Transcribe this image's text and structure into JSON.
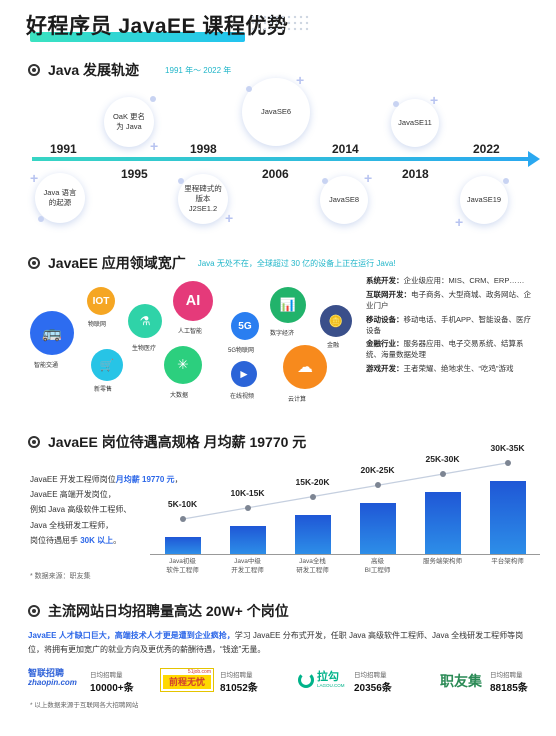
{
  "page": {
    "title": "好程序员 JavaEE 课程优势"
  },
  "history": {
    "heading": "Java 发展轨迹",
    "subheading": "1991 年～ 2022 年",
    "years": [
      "1991",
      "1995",
      "1998",
      "2006",
      "2014",
      "2018",
      "2022"
    ],
    "milestones": [
      {
        "text": "Java 语言的起源"
      },
      {
        "text": "OaK 更名为 Java"
      },
      {
        "text": "里程碑式的版本 J2SE1.2"
      },
      {
        "text": "JavaSE6"
      },
      {
        "text": "JavaSE8"
      },
      {
        "text": "JavaSE11"
      },
      {
        "text": "JavaSE19"
      }
    ]
  },
  "apps": {
    "heading": "JavaEE 应用领域宽广",
    "subheading": "Java 无处不在，全球超过 30 亿的设备上正在运行 Java!",
    "icons": [
      {
        "label": "智能交通",
        "glyph": "🚌",
        "color": "#2d6cf0"
      },
      {
        "label": "物联网",
        "glyph": "IOT",
        "color": "#f5a623"
      },
      {
        "label": "新零售",
        "glyph": "🛒",
        "color": "#27c4e6"
      },
      {
        "label": "生物医疗",
        "glyph": "⚗",
        "color": "#2fd3a8"
      },
      {
        "label": "人工智能",
        "glyph": "AI",
        "color": "#e53a7a"
      },
      {
        "label": "大数据",
        "glyph": "✳",
        "color": "#2ccf7e"
      },
      {
        "label": "5G物联网",
        "glyph": "5G",
        "color": "#2a7ef0"
      },
      {
        "label": "在线视频",
        "glyph": "▶",
        "color": "#2b64d8"
      },
      {
        "label": "数字经济",
        "glyph": "📊",
        "color": "#21b36b"
      },
      {
        "label": "云计算",
        "glyph": "☁",
        "color": "#f78a1d"
      },
      {
        "label": "金融",
        "glyph": "🪙",
        "color": "#3a4f8a"
      }
    ],
    "fields": [
      {
        "name": "系统开发：",
        "desc": "企业级应用：MIS、CRM、ERP……"
      },
      {
        "name": "互联网开发：",
        "desc": "电子商务、大型商城、政务网站、企业门户"
      },
      {
        "name": "移动设备：",
        "desc": "移动电话、手机APP、智能设备、医疗设备"
      },
      {
        "name": "金融行业：",
        "desc": "服务器应用、电子交易系统、结算系统、海量数据处理"
      },
      {
        "name": "游戏开发：",
        "desc": "王者荣耀、绝地求生、“吃鸡”游戏"
      }
    ]
  },
  "salary": {
    "heading": "JavaEE 岗位待遇高规格 月均薪 19770 元",
    "lines": [
      {
        "pre": "JavaEE 开发工程师岗位",
        "hl": "月均薪 19770 元",
        "post": "，"
      },
      {
        "pre": "JavaEE 高端开发岗位，",
        "hl": "",
        "post": ""
      },
      {
        "pre": "例如 Java 高级软件工程师、",
        "hl": "",
        "post": ""
      },
      {
        "pre": "Java 全栈研发工程师，",
        "hl": "",
        "post": ""
      },
      {
        "pre": "岗位待遇屈手 ",
        "hl": "30K 以上",
        "post": "。"
      }
    ],
    "note": "* 数据来源：职友集"
  },
  "chart_data": {
    "type": "bar",
    "categories": [
      "Java初级软件工程师",
      "Java中级开发工程师",
      "Java全栈研发工程师",
      "高级BI工程师",
      "服务端架构师",
      "平台架构师"
    ],
    "category_lines": [
      [
        "Java初级",
        "软件工程师"
      ],
      [
        "Java中级",
        "开发工程师"
      ],
      [
        "Java全栈",
        "研发工程师"
      ],
      [
        "高级",
        "BI工程师"
      ],
      [
        "服务端架构师"
      ],
      [
        "平台架构师"
      ]
    ],
    "value_labels": [
      "5K-10K",
      "10K-15K",
      "15K-20K",
      "20K-25K",
      "25K-30K",
      "30K-35K"
    ],
    "values": [
      [
        5,
        10
      ],
      [
        10,
        15
      ],
      [
        15,
        20
      ],
      [
        20,
        25
      ],
      [
        25,
        30
      ],
      [
        30,
        35
      ]
    ],
    "unit": "K",
    "trend_line": true
  },
  "jobs": {
    "heading": "主流网站日均招聘量高达 20W+ 个岗位",
    "desc_hl": "JavaEE 人才缺口巨大，高端技术人才更是遭到企业疯抢，",
    "desc_rest": "学习 JavaEE 分布式开发，任职 Java 高级软件工程师、Java 全栈研发工程师等岗位，将拥有更加宽广的就业方向及更优秀的薪酬待遇，“钱途”无量。",
    "sites": [
      {
        "logo_top": "智联招聘",
        "logo_bottom": "zhaopin.com",
        "label": "日均招聘量",
        "value": "10000+条"
      },
      {
        "logo_top": "前程无忧",
        "logo_bottom": "51job.com",
        "label": "日均招聘量",
        "value": "81052条"
      },
      {
        "logo_top": "拉勾",
        "logo_bottom": "LAGOU.COM",
        "label": "日均招聘量",
        "value": "20356条"
      },
      {
        "logo_top": "职友集",
        "logo_bottom": "",
        "label": "日均招聘量",
        "value": "88185条"
      }
    ],
    "note": "* 以上数据来源于互联网各大招聘网站"
  }
}
